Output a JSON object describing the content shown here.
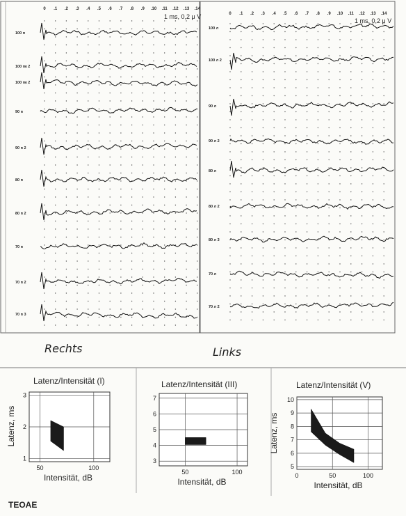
{
  "recording": {
    "time_ticks": [
      "0",
      ".1",
      ".2",
      ".3",
      ".4",
      ".5",
      ".6",
      ".7",
      ".8",
      ".9",
      ".10",
      ".11",
      ".12",
      ".13",
      ".14"
    ],
    "scale_label": "1 ms, 0,2 μ V",
    "rechts": {
      "heading": "Rechts",
      "traces": [
        "100 п",
        "100 пк 2",
        "100 пк 2",
        "90 п",
        "90 п 2",
        "80 п",
        "80 п 2",
        "70 п",
        "70 п 2",
        "70 п 3"
      ]
    },
    "links": {
      "heading": "Links",
      "traces": [
        "100 л",
        "100 л 2",
        "90 л",
        "90 л 2",
        "80 л",
        "80 л 2",
        "80 л 3",
        "70 л",
        "70 л 2"
      ]
    }
  },
  "footer_label": "TEOAE",
  "chart_data": [
    {
      "type": "area",
      "title": "Latenz/Intensität (I)",
      "xlabel": "Intensität, dB",
      "ylabel": "Latenz, ms",
      "xlim": [
        40,
        115
      ],
      "ylim": [
        0.9,
        3.1
      ],
      "xticks": [
        50,
        100
      ],
      "yticks": [
        1,
        2,
        3
      ],
      "grid": true,
      "polygon": [
        [
          60,
          2.2
        ],
        [
          72,
          2.0
        ],
        [
          72,
          1.25
        ],
        [
          60,
          1.55
        ]
      ]
    },
    {
      "type": "area",
      "title": "Latenz/Intensität (III)",
      "xlabel": "Intensität, dB",
      "ylabel": "",
      "xlim": [
        25,
        110
      ],
      "ylim": [
        2.7,
        7.3
      ],
      "xticks": [
        50,
        100
      ],
      "yticks": [
        3,
        4,
        5,
        6,
        7
      ],
      "grid": true,
      "polygon": [
        [
          50,
          4.5
        ],
        [
          70,
          4.5
        ],
        [
          70,
          4.05
        ],
        [
          50,
          4.05
        ]
      ]
    },
    {
      "type": "area",
      "title": "Latenz/Intensität (V)",
      "xlabel": "Intensität, dB",
      "ylabel": "Latenz, ms",
      "xlim": [
        0,
        120
      ],
      "ylim": [
        4.8,
        10.2
      ],
      "xticks": [
        0,
        50,
        100
      ],
      "yticks": [
        5,
        6,
        7,
        8,
        9,
        10
      ],
      "grid": true,
      "polygon": [
        [
          20,
          9.3
        ],
        [
          40,
          7.5
        ],
        [
          60,
          6.75
        ],
        [
          80,
          6.3
        ],
        [
          80,
          5.3
        ],
        [
          60,
          5.9
        ],
        [
          40,
          6.6
        ],
        [
          20,
          7.6
        ]
      ]
    }
  ]
}
